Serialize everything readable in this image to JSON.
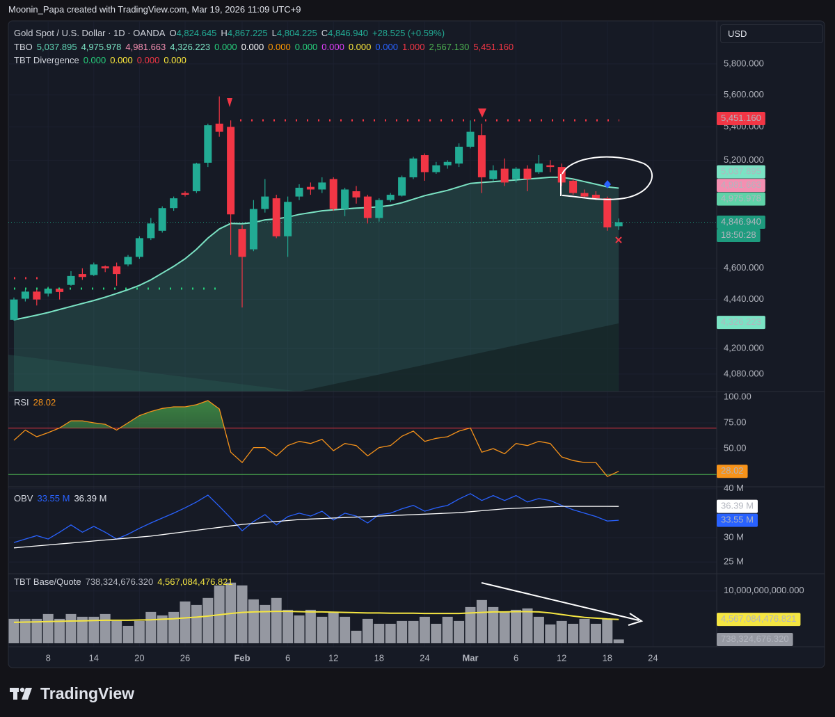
{
  "header": {
    "credit": "Moonin_Papa created with TradingView.com, Mar 19, 2026 11:09 UTC+9",
    "currency": "USD",
    "brand": "TradingView"
  },
  "chart_data": [
    {
      "type": "candlestick",
      "title": "Gold Spot / U.S. Dollar · 1D · OANDA",
      "legend": [
        {
          "text": "O"
        },
        {
          "text": "4,824.645",
          "color": "#22ab94"
        },
        {
          "text": "H"
        },
        {
          "text": "4,867.225",
          "color": "#22ab94"
        },
        {
          "text": "L"
        },
        {
          "text": "4,804.225",
          "color": "#22ab94"
        },
        {
          "text": "C"
        },
        {
          "text": "4,846.940",
          "color": "#22ab94"
        },
        {
          "text": "+28.525 (+0.59%)",
          "color": "#22ab94"
        }
      ],
      "indicator_legends": [
        {
          "title": "TBO",
          "items": [
            {
              "text": "5,037.895",
              "color": "#5fd3b3"
            },
            {
              "text": "4,975.978",
              "color": "#7be3c4"
            },
            {
              "text": "4,981.663",
              "color": "#f48fb1"
            },
            {
              "text": "4,326.223",
              "color": "#7be3c4"
            },
            {
              "text": "0.000",
              "color": "#26d07c"
            },
            {
              "text": "0.000",
              "color": "#ffffff"
            },
            {
              "text": "0.000",
              "color": "#ff9800"
            },
            {
              "text": "0.000",
              "color": "#26d07c"
            },
            {
              "text": "0.000",
              "color": "#e040fb"
            },
            {
              "text": "0.000",
              "color": "#ffeb3b"
            },
            {
              "text": "0.000",
              "color": "#2962ff"
            },
            {
              "text": "1.000",
              "color": "#f23645"
            },
            {
              "text": "2,567.130",
              "color": "#4caf50"
            },
            {
              "text": "5,451.160",
              "color": "#f23645"
            }
          ]
        },
        {
          "title": "TBT Divergence",
          "items": [
            {
              "text": "0.000",
              "color": "#26d07c"
            },
            {
              "text": "0.000",
              "color": "#ffeb3b"
            },
            {
              "text": "0.000",
              "color": "#f23645"
            },
            {
              "text": "0.000",
              "color": "#ffeb3b"
            }
          ]
        }
      ],
      "categories": [
        null,
        null,
        null,
        "8",
        null,
        null,
        null,
        "14",
        null,
        null,
        null,
        "20",
        null,
        null,
        null,
        "26",
        null,
        null,
        null,
        null,
        "Feb",
        null,
        null,
        null,
        "6",
        null,
        null,
        null,
        "12",
        null,
        null,
        null,
        "18",
        null,
        null,
        null,
        "24",
        null,
        null,
        null,
        "Mar",
        null,
        null,
        null,
        "6",
        null,
        null,
        null,
        "12",
        null,
        null,
        null,
        "18",
        null,
        null,
        null,
        "24"
      ],
      "open": [
        4339,
        4444,
        4480,
        4470,
        4495,
        4514,
        4570,
        4565,
        4610,
        4610,
        4620,
        4660,
        4760,
        4800,
        4925,
        5010,
        5020,
        5185,
        5420,
        5400,
        4810,
        4700,
        4920,
        4980,
        4770,
        4990,
        5045,
        5030,
        5090,
        4920,
        5020,
        4990,
        4870,
        4970,
        4995,
        5100,
        5230,
        5130,
        5170,
        5180,
        5280,
        5350,
        5090,
        5150,
        5090,
        5150,
        5130,
        5170,
        5160,
        5080,
        5010,
        5000,
        4980,
        4824.645,
        null,
        null,
        null
      ],
      "high": [
        4450,
        4490,
        4500,
        4505,
        4500,
        4585,
        4600,
        4630,
        4615,
        4630,
        4670,
        4770,
        4870,
        4935,
        4990,
        5020,
        5185,
        5420,
        5590,
        5440,
        4830,
        4970,
        5090,
        5000,
        4990,
        5060,
        5070,
        5100,
        5100,
        5040,
        5050,
        5000,
        4980,
        5010,
        5110,
        5220,
        5240,
        5190,
        5200,
        5300,
        5440,
        5420,
        5170,
        5210,
        5160,
        5170,
        5230,
        5200,
        5180,
        5090,
        5030,
        5020,
        4990,
        4867.225,
        null,
        null,
        null
      ],
      "low": [
        4335,
        4430,
        4410,
        4455,
        4440,
        4510,
        4540,
        4560,
        4580,
        4510,
        4610,
        4650,
        4750,
        4790,
        4910,
        4990,
        5010,
        5160,
        5340,
        4670,
        4400,
        4690,
        4900,
        4760,
        4660,
        4970,
        5000,
        5010,
        4910,
        4880,
        4950,
        4840,
        4850,
        4960,
        4990,
        5090,
        5080,
        5120,
        5150,
        5160,
        5270,
        5010,
        5080,
        5050,
        5070,
        5020,
        5120,
        5130,
        5050,
        5000,
        4980,
        4970,
        4800,
        4804.225,
        null,
        null,
        null
      ],
      "close": [
        4440,
        4480,
        4440,
        4495,
        4478,
        4560,
        4555,
        4620,
        4600,
        4570,
        4660,
        4760,
        4840,
        4925,
        4980,
        5000,
        5180,
        5410,
        5370,
        4890,
        4660,
        4920,
        4990,
        4770,
        4960,
        5040,
        5030,
        5070,
        4920,
        5030,
        4985,
        4870,
        4970,
        5000,
        5100,
        5210,
        5130,
        5170,
        5190,
        5280,
        5370,
        5100,
        5140,
        5070,
        5150,
        5090,
        5180,
        5160,
        5070,
        5010,
        4990,
        4980,
        4818.415,
        4846.94,
        null,
        null,
        null
      ],
      "up_color": "#22ab94",
      "down_color": "#f23645",
      "series": [
        {
          "color": "#7be3c4",
          "values": [
            4339,
            4350,
            4362,
            4375,
            4390,
            4405,
            4420,
            4435,
            4452,
            4470,
            4490,
            4512,
            4540,
            4575,
            4610,
            4650,
            4700,
            4760,
            4810,
            4840,
            4838,
            4845,
            4860,
            4865,
            4875,
            4890,
            4900,
            4910,
            4915,
            4920,
            4925,
            4928,
            4932,
            4940,
            4955,
            4975,
            4995,
            5010,
            5025,
            5045,
            5065,
            5070,
            5075,
            5080,
            5085,
            5090,
            5095,
            5100,
            5100,
            5090,
            5075,
            5060,
            5045,
            5037.895,
            null,
            null,
            null
          ]
        }
      ],
      "log": true,
      "ylim": [
        4000,
        6090
      ],
      "yticks": [
        {
          "value": 4080,
          "label": "4,080.000"
        },
        {
          "value": 4200,
          "label": "4,200.000"
        },
        {
          "value": 4440,
          "label": "4,440.000"
        },
        {
          "value": 4600,
          "label": "4,600.000"
        },
        {
          "value": 5200,
          "label": "5,200.000"
        },
        {
          "value": 5400,
          "label": "5,400.000"
        },
        {
          "value": 5600,
          "label": "5,600.000"
        },
        {
          "value": 5800,
          "label": "5,800.000"
        }
      ],
      "price_labels": [
        {
          "value": 5451.16,
          "label": "5,451.160",
          "bg": "#f23645",
          "fg": "#ffffff"
        },
        {
          "value": 5037.895,
          "label": "5,037.895",
          "bg": "#7be3c4",
          "fg": "#131722"
        },
        {
          "value": 4981.663,
          "label": "4,981.663",
          "bg": "#f48fb1",
          "fg": "#131722"
        },
        {
          "value": 4975.978,
          "label": "4,975.978",
          "bg": "#5fd3a8",
          "fg": "#131722"
        },
        {
          "value": 4846.94,
          "label": "4,846.940",
          "sub": "18:50:28",
          "bg": "#1e9b7e",
          "fg": "#ffffff"
        },
        {
          "value": 4326.223,
          "label": "4,326.223",
          "bg": "#7be3c4",
          "fg": "#131722"
        }
      ]
    },
    {
      "type": "line",
      "title": "RSI",
      "ylim": [
        13,
        104
      ],
      "yticks": [
        {
          "value": 50,
          "label": "50.00"
        },
        {
          "value": 75,
          "label": "75.00"
        },
        {
          "value": 100,
          "label": "100.00"
        }
      ],
      "levels": [
        {
          "value": 70,
          "color": "#f23645"
        },
        {
          "value": 25,
          "color": "#4caf50"
        }
      ],
      "series": [
        {
          "color": "#f7931a",
          "label": "28.02",
          "values": [
            58,
            68,
            61.5,
            65.5,
            70,
            77,
            77,
            75,
            73.6,
            68,
            75,
            82,
            86,
            89,
            90.5,
            90.5,
            92.6,
            96.6,
            88.5,
            46.6,
            36.5,
            51,
            51,
            43,
            53,
            57,
            55,
            59,
            48,
            55,
            53,
            43,
            51,
            53,
            62,
            67,
            57,
            60,
            61.5,
            67,
            70,
            46.6,
            50,
            45,
            55,
            53,
            57,
            55,
            42,
            38.5,
            36.5,
            36.5,
            23,
            28.02
          ]
        }
      ]
    },
    {
      "type": "line",
      "title": "OBV",
      "ylim": [
        22.6,
        40.4
      ],
      "yticks": [
        {
          "value": 25,
          "label": "25 M"
        },
        {
          "value": 30,
          "label": "30 M"
        },
        {
          "value": 40,
          "label": "40 M"
        }
      ],
      "series": [
        {
          "color": "#2962ff",
          "label": "33.55 M",
          "values": [
            29,
            29.7,
            30.4,
            29.7,
            31.1,
            32.6,
            31.1,
            32.3,
            31.1,
            29.7,
            30.7,
            31.9,
            33,
            34,
            35,
            36.1,
            37.3,
            38.7,
            36.4,
            34,
            31.4,
            33.3,
            34.7,
            32.6,
            34.3,
            35,
            34.4,
            35.4,
            33.6,
            35,
            34.4,
            33,
            34.7,
            35,
            35.9,
            36.6,
            35.4,
            36.1,
            36.6,
            37.9,
            39,
            37.6,
            38.6,
            37.6,
            38.6,
            37.3,
            38,
            37.6,
            36.6,
            35.7,
            35,
            34.3,
            33.4,
            33.55
          ]
        },
        {
          "color": "#ffffff",
          "label": "36.39 M",
          "values": [
            27.9,
            28.1,
            28.3,
            28.5,
            28.7,
            28.9,
            29.1,
            29.3,
            29.5,
            29.7,
            29.9,
            30.1,
            30.3,
            30.6,
            30.9,
            31.2,
            31.5,
            31.8,
            32.1,
            32.4,
            32.7,
            32.9,
            33.1,
            33.3,
            33.5,
            33.7,
            33.8,
            33.9,
            34.0,
            34.1,
            34.2,
            34.3,
            34.4,
            34.5,
            34.6,
            34.7,
            34.8,
            34.9,
            35.0,
            35.1,
            35.3,
            35.5,
            35.7,
            35.9,
            36.0,
            36.1,
            36.2,
            36.3,
            36.4,
            36.4,
            36.4,
            36.4,
            36.4,
            36.39
          ]
        }
      ]
    },
    {
      "type": "bar",
      "title": "TBT Base/Quote",
      "ylim": [
        0,
        13300000000
      ],
      "yticks": [
        {
          "value": 10000000000,
          "label": "10,000,000,000.000"
        }
      ],
      "series": [
        {
          "type": "bar",
          "color": "#9598a1",
          "label": "738,324,676.320",
          "values": [
            4670000000,
            4670000000,
            4670000000,
            5600000000,
            4670000000,
            5600000000,
            5070000000,
            5070000000,
            5600000000,
            4270000000,
            3330000000,
            4270000000,
            6000000000,
            5330000000,
            6000000000,
            8000000000,
            7330000000,
            8670000000,
            11070000000,
            11600000000,
            11070000000,
            8400000000,
            7330000000,
            8670000000,
            6400000000,
            5330000000,
            6400000000,
            5070000000,
            6000000000,
            5070000000,
            2400000000,
            4670000000,
            3730000000,
            3730000000,
            4270000000,
            4270000000,
            5070000000,
            3730000000,
            5070000000,
            4270000000,
            6930000000,
            8270000000,
            6930000000,
            6000000000,
            6400000000,
            6670000000,
            5070000000,
            3600000000,
            4270000000,
            3730000000,
            4670000000,
            3730000000,
            4670000000,
            738324676.32
          ]
        },
        {
          "type": "line",
          "color": "#f5e642",
          "label": "4,567,084,476.821",
          "values": [
            4000000000,
            4050000000,
            4100000000,
            4150000000,
            4200000000,
            4250000000,
            4300000000,
            4350000000,
            4400000000,
            4400000000,
            4400000000,
            4450000000,
            4500000000,
            4600000000,
            4700000000,
            4850000000,
            5000000000,
            5200000000,
            5450000000,
            5700000000,
            5900000000,
            6000000000,
            6050000000,
            6100000000,
            6100000000,
            6050000000,
            6000000000,
            6000000000,
            5950000000,
            5900000000,
            5850000000,
            5800000000,
            5800000000,
            5750000000,
            5750000000,
            5750000000,
            5700000000,
            5700000000,
            5700000000,
            5700000000,
            5800000000,
            5900000000,
            6000000000,
            6000000000,
            6050000000,
            6050000000,
            6000000000,
            5800000000,
            5500000000,
            5200000000,
            4950000000,
            4800000000,
            4650000000,
            4567084476.821
          ]
        }
      ]
    }
  ]
}
